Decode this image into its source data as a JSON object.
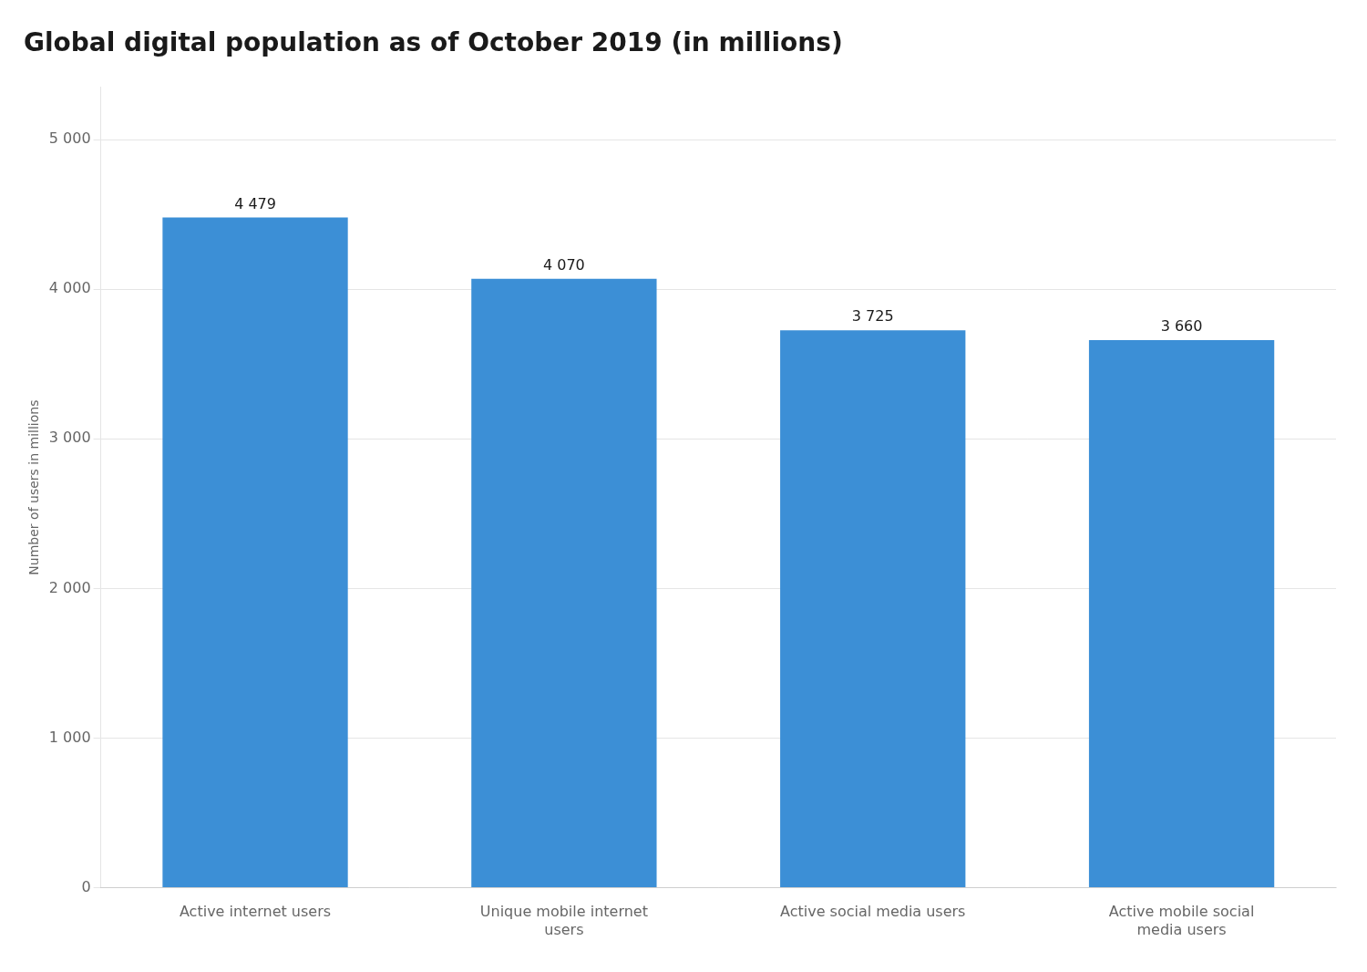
{
  "chart_data": {
    "type": "bar",
    "title": "Global digital population as of October 2019 (in millions)",
    "categories": [
      "Active internet users",
      "Unique mobile internet\nusers",
      "Active social media users",
      "Active mobile social\nmedia users"
    ],
    "values": [
      4479,
      4070,
      3725,
      3660
    ],
    "value_labels": [
      "4 479",
      "4 070",
      "3 725",
      "3 660"
    ],
    "color": "#3c8fd6",
    "ylabel": "Number of users in millions",
    "ylim": [
      0,
      5350
    ],
    "yticks": [
      0,
      {
        "value": 1000,
        "label": "1 000"
      },
      {
        "value": 2000,
        "label": "2 000"
      },
      {
        "value": 3000,
        "label": "3 000"
      },
      {
        "value": 4000,
        "label": "4 000"
      },
      {
        "value": 5000,
        "label": "5 000"
      }
    ],
    "grid": true,
    "data_labels": true
  }
}
